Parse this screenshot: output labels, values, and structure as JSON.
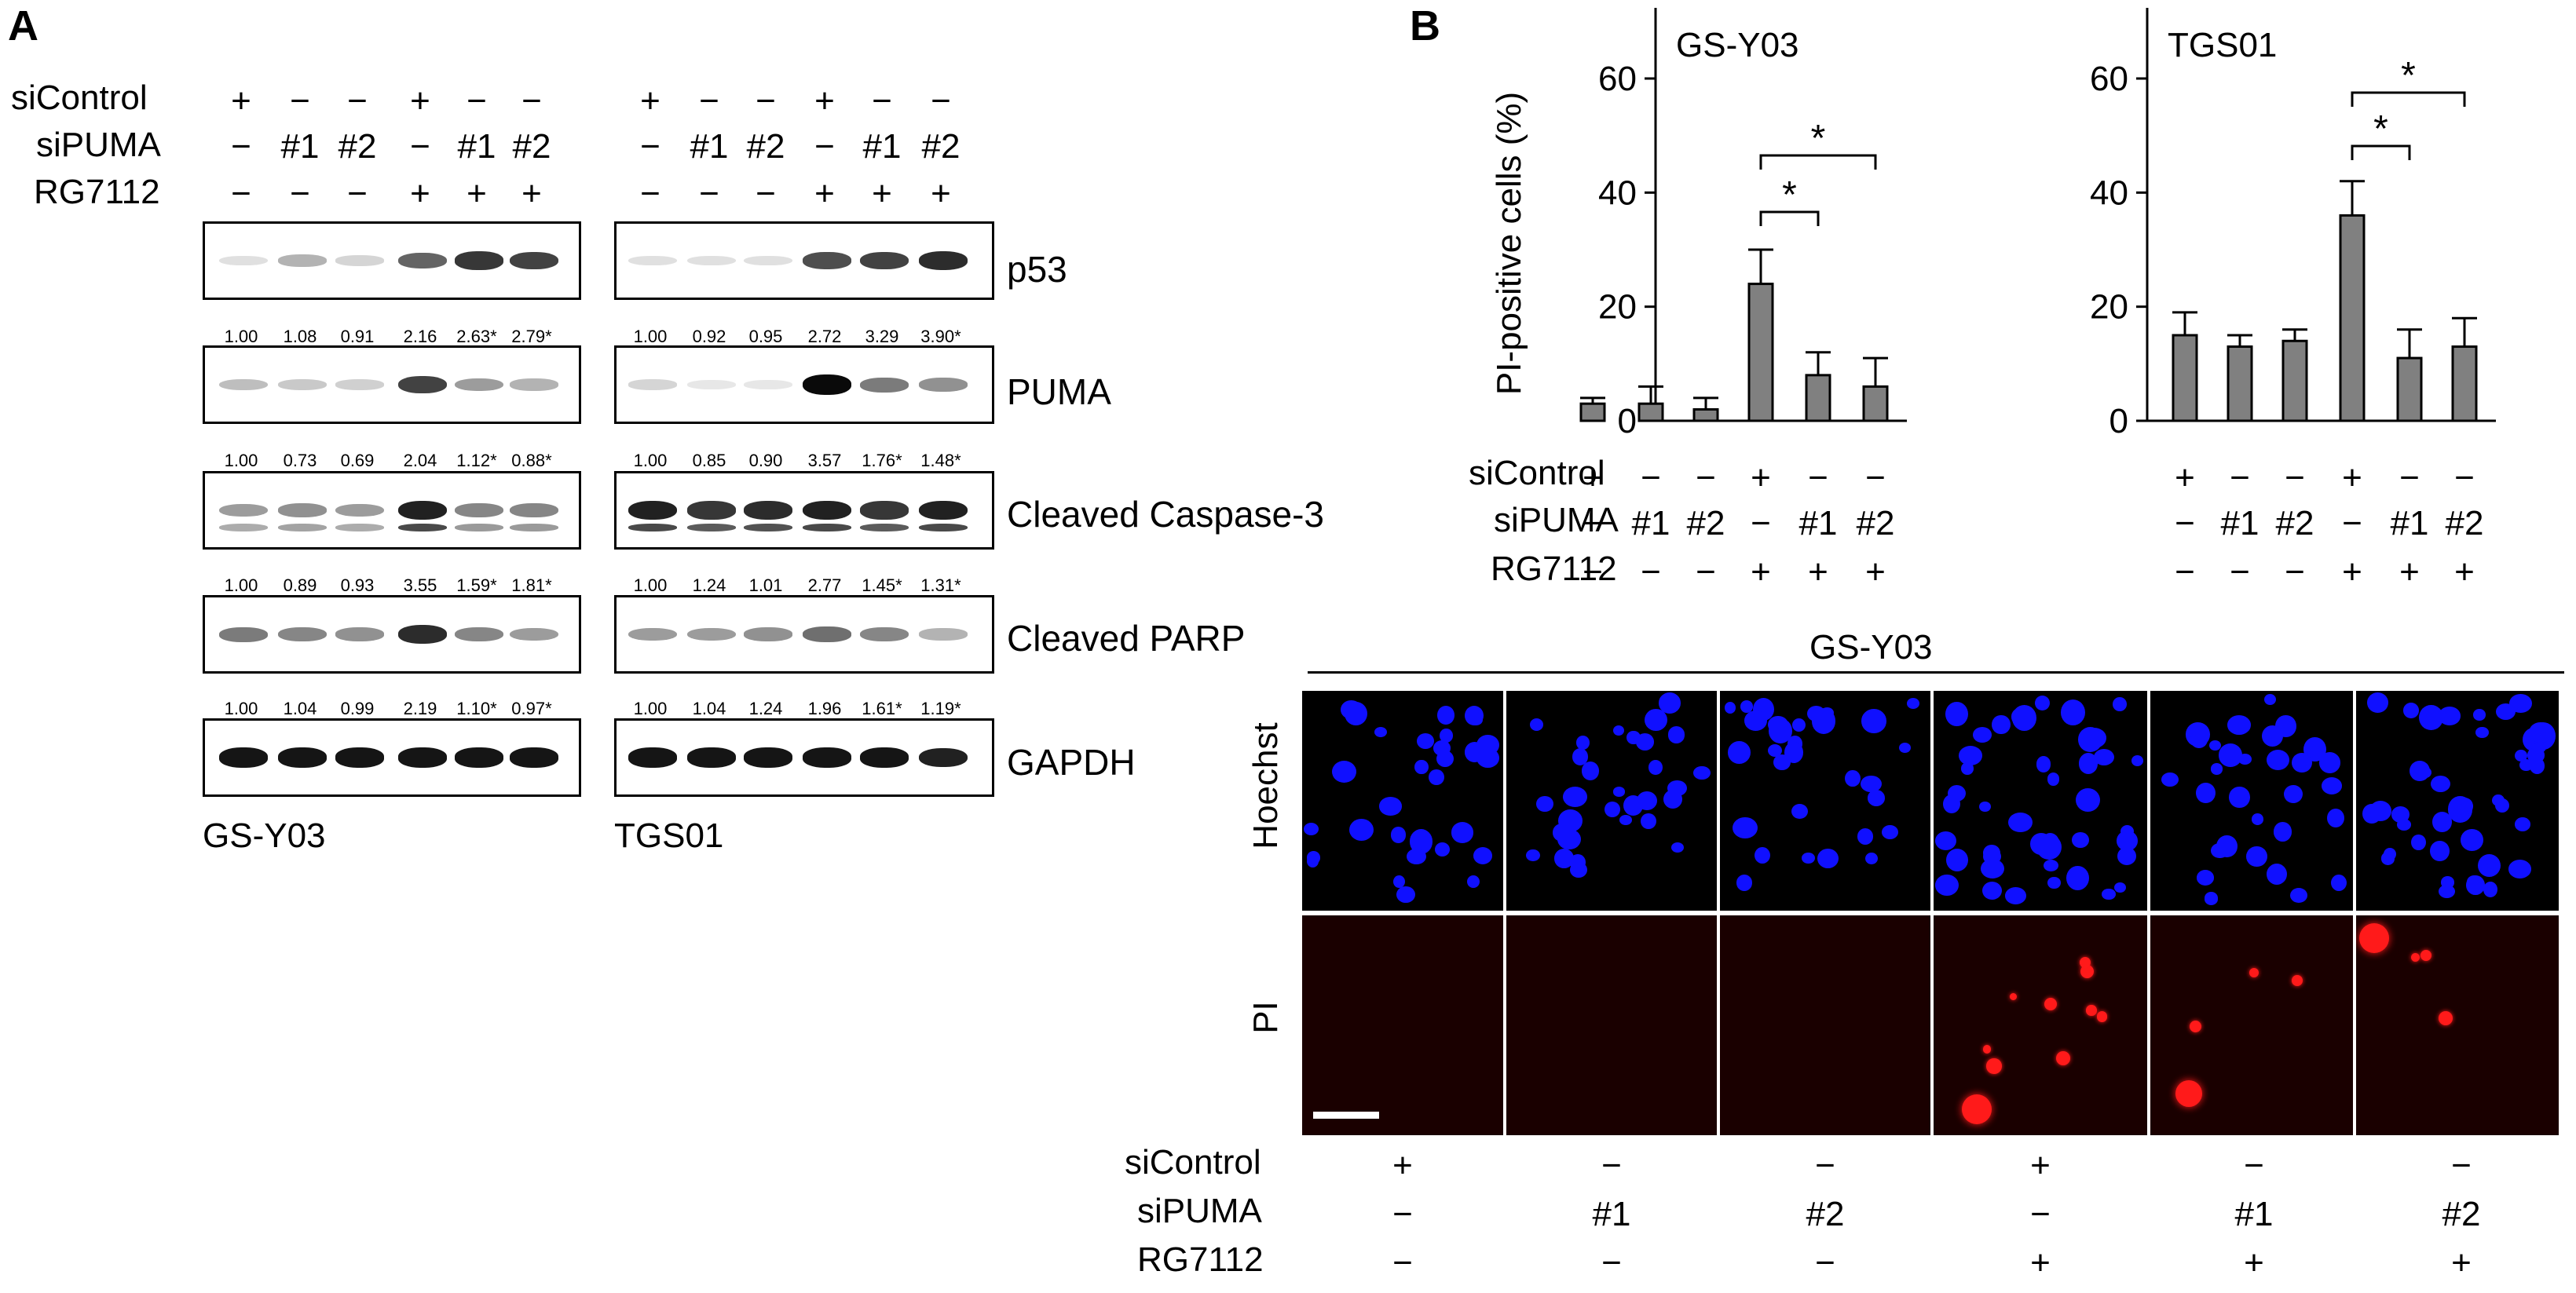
{
  "panel_a": {
    "letter": "A",
    "row_labels": [
      "siControl",
      "siPUMA",
      "RG7112"
    ],
    "row_symbols": [
      [
        "+",
        "−",
        "−",
        "+",
        "−",
        "−"
      ],
      [
        "−",
        "#1",
        "#2",
        "−",
        "#1",
        "#2"
      ],
      [
        "−",
        "−",
        "−",
        "+",
        "+",
        "+"
      ]
    ],
    "proteins": [
      "p53",
      "PUMA",
      "Cleaved Caspase-3",
      "Cleaved PARP",
      "GAPDH"
    ],
    "cell_lines": [
      "GS-Y03",
      "TGS01"
    ],
    "quantification": {
      "GS-Y03": [
        [
          "1.00",
          "1.08",
          "0.91",
          "2.16",
          "2.63*",
          "2.79*"
        ],
        [
          "1.00",
          "0.73",
          "0.69",
          "2.04",
          "1.12*",
          "0.88*"
        ],
        [
          "1.00",
          "0.89",
          "0.93",
          "3.55",
          "1.59*",
          "1.81*"
        ],
        [
          "1.00",
          "1.04",
          "0.99",
          "2.19",
          "1.10*",
          "0.97*"
        ]
      ],
      "TGS01": [
        [
          "1.00",
          "0.92",
          "0.95",
          "2.72",
          "3.29",
          "3.90*"
        ],
        [
          "1.00",
          "0.85",
          "0.90",
          "3.57",
          "1.76*",
          "1.48*"
        ],
        [
          "1.00",
          "1.24",
          "1.01",
          "2.77",
          "1.45*",
          "1.31*"
        ],
        [
          "1.00",
          "1.04",
          "1.24",
          "1.96",
          "1.61*",
          "1.19*"
        ]
      ]
    }
  },
  "panel_b": {
    "letter": "B",
    "ylabel": "PI-positive cells (%)",
    "row_labels": [
      "siControl",
      "siPUMA",
      "RG7112"
    ],
    "row_symbols": [
      [
        "+",
        "−",
        "−",
        "+",
        "−",
        "−"
      ],
      [
        "−",
        "#1",
        "#2",
        "−",
        "#1",
        "#2"
      ],
      [
        "−",
        "−",
        "−",
        "+",
        "+",
        "+"
      ]
    ],
    "significance_mark": "*",
    "microscopy_title": "GS-Y03",
    "microscopy_rows": [
      "Hoechst",
      "PI"
    ],
    "colors": {
      "bar": "#808080",
      "hoechst": "#1010ff",
      "pi": "#ff1a1a",
      "bg": "#000000"
    }
  },
  "chart_data": [
    {
      "type": "bar",
      "title": "GS-Y03",
      "ylabel": "PI-positive cells (%)",
      "ylim": [
        0,
        60
      ],
      "yticks": [
        "0",
        "20",
        "40",
        "60"
      ],
      "categories": [
        "1",
        "2",
        "3",
        "4",
        "5",
        "6"
      ],
      "values": [
        3,
        3,
        2,
        24,
        8,
        6
      ],
      "errors": [
        1,
        3,
        2,
        6,
        4,
        5
      ],
      "significance": [
        [
          4,
          5
        ],
        [
          4,
          6
        ]
      ]
    },
    {
      "type": "bar",
      "title": "TGS01",
      "ylabel": "",
      "ylim": [
        0,
        60
      ],
      "yticks": [
        "0",
        "20",
        "40",
        "60"
      ],
      "categories": [
        "1",
        "2",
        "3",
        "4",
        "5",
        "6"
      ],
      "values": [
        15,
        13,
        14,
        36,
        11,
        13
      ],
      "errors": [
        4,
        2,
        2,
        6,
        5,
        5
      ],
      "significance": [
        [
          4,
          5
        ],
        [
          4,
          6
        ]
      ]
    }
  ]
}
